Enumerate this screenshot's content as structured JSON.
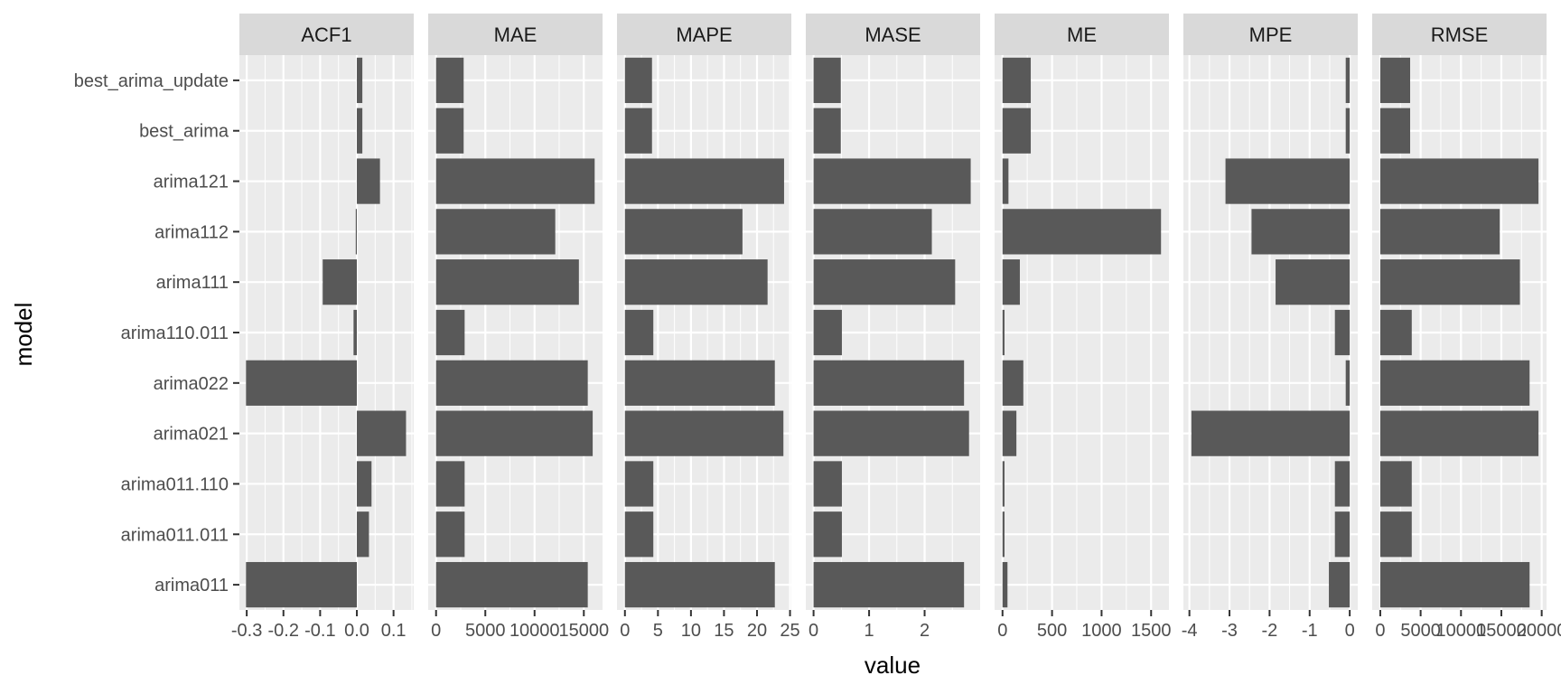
{
  "chart_data": {
    "type": "bar",
    "orientation": "horizontal",
    "xlabel": "value",
    "ylabel": "model",
    "categories": [
      "best_arima_update",
      "best_arima",
      "arima121",
      "arima112",
      "arima111",
      "arima110.011",
      "arima022",
      "arima021",
      "arima011.110",
      "arima011.011",
      "arima011"
    ],
    "colors": {
      "bar": "#595959",
      "panel": "#EBEBEB",
      "grid": "#FFFFFF",
      "strip": "#D9D9D9"
    },
    "grid": true,
    "facets": [
      {
        "name": "ACF1",
        "xlim": [
          -0.32,
          0.155
        ],
        "ticks": [
          -0.3,
          -0.2,
          -0.1,
          0.0,
          0.1
        ],
        "tick_labels": [
          "-0.3",
          "-0.2",
          "-0.1",
          "0.0",
          "0.1"
        ],
        "values": [
          0.015,
          0.015,
          0.063,
          -0.003,
          -0.093,
          -0.009,
          -0.302,
          0.134,
          0.04,
          0.033,
          -0.302
        ]
      },
      {
        "name": "MAE",
        "xlim": [
          -800,
          16900
        ],
        "ticks": [
          0,
          5000,
          10000,
          15000
        ],
        "tick_labels": [
          "0",
          "5000",
          "10000",
          "15000"
        ],
        "values": [
          2800,
          2800,
          16100,
          12100,
          14500,
          2900,
          15400,
          15900,
          2900,
          2900,
          15400
        ]
      },
      {
        "name": "MAPE",
        "xlim": [
          -1.2,
          25.2
        ],
        "ticks": [
          0,
          5,
          10,
          15,
          20,
          25
        ],
        "tick_labels": [
          "0",
          "5",
          "10",
          "15",
          "20",
          "25"
        ],
        "values": [
          4.1,
          4.1,
          24.1,
          17.8,
          21.6,
          4.3,
          22.7,
          24.0,
          4.3,
          4.3,
          22.7
        ]
      },
      {
        "name": "MASE",
        "xlim": [
          -0.14,
          3.0
        ],
        "ticks": [
          0,
          1,
          2
        ],
        "tick_labels": [
          "0",
          "1",
          "2"
        ],
        "values": [
          0.49,
          0.49,
          2.83,
          2.13,
          2.55,
          0.51,
          2.71,
          2.8,
          0.51,
          0.51,
          2.71
        ]
      },
      {
        "name": "ME",
        "xlim": [
          -80,
          1680
        ],
        "ticks": [
          0,
          500,
          1000,
          1500
        ],
        "tick_labels": [
          "0",
          "500",
          "1000",
          "1500"
        ],
        "values": [
          285,
          285,
          60,
          1600,
          175,
          20,
          210,
          140,
          20,
          20,
          50
        ]
      },
      {
        "name": "MPE",
        "xlim": [
          -4.15,
          0.2
        ],
        "ticks": [
          -4,
          -3,
          -2,
          -1,
          0
        ],
        "tick_labels": [
          "-4",
          "-3",
          "-2",
          "-1",
          "0"
        ],
        "values": [
          -0.1,
          -0.1,
          -3.1,
          -2.45,
          -1.85,
          -0.37,
          -0.1,
          -3.95,
          -0.37,
          -0.37,
          -0.52
        ]
      },
      {
        "name": "RMSE",
        "xlim": [
          -1000,
          20600
        ],
        "ticks": [
          0,
          5000,
          10000,
          15000,
          20000
        ],
        "tick_labels": [
          "0",
          "5000",
          "10000",
          "15000",
          "20000"
        ],
        "values": [
          3700,
          3700,
          19600,
          14800,
          17300,
          3900,
          18500,
          19600,
          3900,
          3900,
          18500
        ]
      }
    ]
  }
}
